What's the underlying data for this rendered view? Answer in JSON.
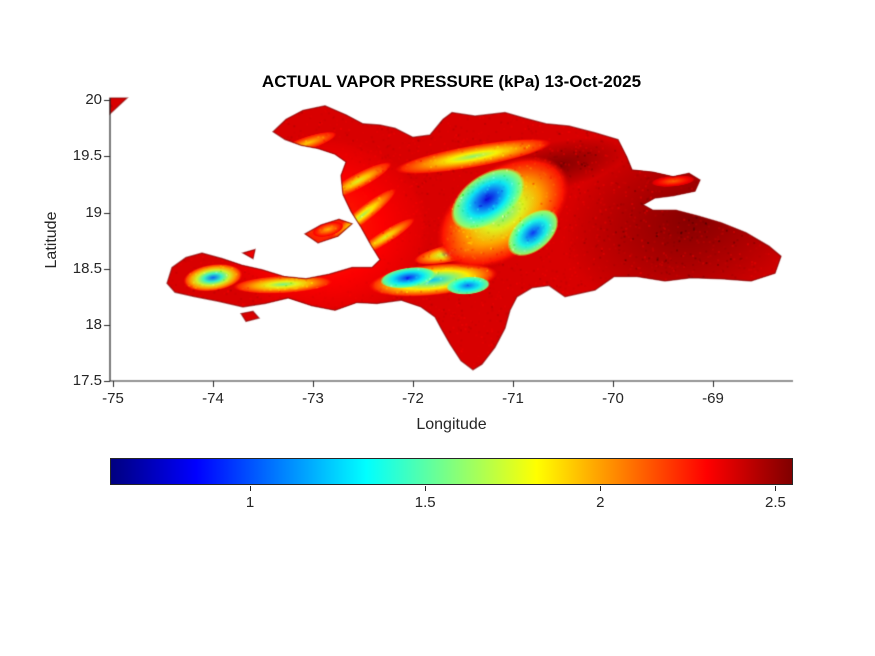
{
  "chart_data": {
    "type": "heatmap",
    "title": "ACTUAL VAPOR PRESSURE (kPa) 13-Oct-2025",
    "variable": "ACTUAL VAPOR PRESSURE",
    "unit": "kPa",
    "date": "13-Oct-2025",
    "xlabel": "Longitude",
    "ylabel": "Latitude",
    "colormap": "jet",
    "grid": false,
    "xlim": [
      -75.03,
      -68.2
    ],
    "ylim": [
      17.5,
      20.02
    ],
    "x_ticks": [
      "-75",
      "-74",
      "-73",
      "-72",
      "-71",
      "-70",
      "-69"
    ],
    "y_ticks": [
      "17.5",
      "18",
      "18.5",
      "19",
      "19.5",
      "20"
    ],
    "colorbar": {
      "orientation": "horizontal",
      "position": "bottom",
      "ticks": [
        "1",
        "1.5",
        "2",
        "2.5"
      ],
      "cmin": 0.6,
      "cmax": 2.55
    },
    "value_range_kpa": [
      0.8,
      2.55
    ],
    "axis_color": "#262626",
    "background_color": "#ffffff",
    "samples": [
      {
        "lon": -69.0,
        "lat": 18.8,
        "kpa": 2.5
      },
      {
        "lon": -70.5,
        "lat": 19.4,
        "kpa": 2.5
      },
      {
        "lon": -68.6,
        "lat": 18.6,
        "kpa": 2.55
      },
      {
        "lon": -72.3,
        "lat": 18.55,
        "kpa": 2.35
      },
      {
        "lon": -73.5,
        "lat": 18.3,
        "kpa": 2.2
      },
      {
        "lon": -72.5,
        "lat": 19.0,
        "kpa": 1.7
      },
      {
        "lon": -71.6,
        "lat": 19.45,
        "kpa": 1.6
      },
      {
        "lon": -74.0,
        "lat": 18.42,
        "kpa": 1.1
      },
      {
        "lon": -72.0,
        "lat": 18.42,
        "kpa": 0.9
      },
      {
        "lon": -71.25,
        "lat": 19.1,
        "kpa": 0.8
      },
      {
        "lon": -70.8,
        "lat": 18.8,
        "kpa": 0.95
      },
      {
        "lon": -69.4,
        "lat": 19.25,
        "kpa": 2.1
      }
    ],
    "region_outlines": {
      "hispaniola": [
        [
          -73.4,
          19.72
        ],
        [
          -73.27,
          19.83
        ],
        [
          -73.1,
          19.91
        ],
        [
          -72.88,
          19.95
        ],
        [
          -72.67,
          19.87
        ],
        [
          -72.5,
          19.79
        ],
        [
          -72.33,
          19.78
        ],
        [
          -72.18,
          19.75
        ],
        [
          -72.0,
          19.67
        ],
        [
          -71.83,
          19.69
        ],
        [
          -71.7,
          19.83
        ],
        [
          -71.61,
          19.89
        ],
        [
          -71.38,
          19.86
        ],
        [
          -71.08,
          19.89
        ],
        [
          -70.88,
          19.84
        ],
        [
          -70.67,
          19.79
        ],
        [
          -70.44,
          19.77
        ],
        [
          -70.18,
          19.71
        ],
        [
          -69.95,
          19.65
        ],
        [
          -69.86,
          19.49
        ],
        [
          -69.81,
          19.38
        ],
        [
          -69.6,
          19.36
        ],
        [
          -69.4,
          19.32
        ],
        [
          -69.24,
          19.35
        ],
        [
          -69.13,
          19.29
        ],
        [
          -69.18,
          19.19
        ],
        [
          -69.4,
          19.15
        ],
        [
          -69.58,
          19.13
        ],
        [
          -69.7,
          19.07
        ],
        [
          -69.6,
          19.02
        ],
        [
          -69.37,
          19.02
        ],
        [
          -69.15,
          18.97
        ],
        [
          -68.92,
          18.91
        ],
        [
          -68.67,
          18.82
        ],
        [
          -68.44,
          18.7
        ],
        [
          -68.32,
          18.61
        ],
        [
          -68.38,
          18.46
        ],
        [
          -68.62,
          18.39
        ],
        [
          -68.92,
          18.41
        ],
        [
          -69.22,
          18.42
        ],
        [
          -69.48,
          18.39
        ],
        [
          -69.76,
          18.43
        ],
        [
          -69.99,
          18.43
        ],
        [
          -70.18,
          18.31
        ],
        [
          -70.48,
          18.25
        ],
        [
          -70.64,
          18.35
        ],
        [
          -70.81,
          18.33
        ],
        [
          -70.96,
          18.25
        ],
        [
          -71.03,
          18.13
        ],
        [
          -71.08,
          17.97
        ],
        [
          -71.18,
          17.8
        ],
        [
          -71.31,
          17.65
        ],
        [
          -71.4,
          17.6
        ],
        [
          -71.52,
          17.68
        ],
        [
          -71.63,
          17.83
        ],
        [
          -71.72,
          17.97
        ],
        [
          -71.78,
          18.07
        ],
        [
          -71.92,
          18.16
        ],
        [
          -72.12,
          18.22
        ],
        [
          -72.36,
          18.19
        ],
        [
          -72.56,
          18.2
        ],
        [
          -72.78,
          18.13
        ],
        [
          -73.01,
          18.17
        ],
        [
          -73.25,
          18.24
        ],
        [
          -73.48,
          18.19
        ],
        [
          -73.7,
          18.16
        ],
        [
          -73.95,
          18.21
        ],
        [
          -74.18,
          18.25
        ],
        [
          -74.38,
          18.29
        ],
        [
          -74.46,
          18.37
        ],
        [
          -74.41,
          18.51
        ],
        [
          -74.27,
          18.6
        ],
        [
          -74.11,
          18.64
        ],
        [
          -73.91,
          18.59
        ],
        [
          -73.71,
          18.53
        ],
        [
          -73.51,
          18.49
        ],
        [
          -73.29,
          18.43
        ],
        [
          -73.07,
          18.41
        ],
        [
          -72.84,
          18.45
        ],
        [
          -72.61,
          18.51
        ],
        [
          -72.41,
          18.51
        ],
        [
          -72.33,
          18.58
        ],
        [
          -72.42,
          18.71
        ],
        [
          -72.52,
          18.87
        ],
        [
          -72.62,
          19.01
        ],
        [
          -72.7,
          19.16
        ],
        [
          -72.72,
          19.33
        ],
        [
          -72.67,
          19.45
        ],
        [
          -72.78,
          19.52
        ],
        [
          -72.95,
          19.57
        ],
        [
          -73.12,
          19.6
        ],
        [
          -73.28,
          19.65
        ]
      ],
      "gonave": [
        [
          -73.08,
          18.81
        ],
        [
          -72.92,
          18.89
        ],
        [
          -72.74,
          18.94
        ],
        [
          -72.61,
          18.9
        ],
        [
          -72.75,
          18.79
        ],
        [
          -72.95,
          18.73
        ]
      ],
      "cuba_edge": [
        [
          -75.03,
          20.02
        ],
        [
          -74.86,
          20.02
        ],
        [
          -75.03,
          19.88
        ]
      ],
      "ile_a_vache": [
        [
          -73.72,
          18.1
        ],
        [
          -73.6,
          18.12
        ],
        [
          -73.54,
          18.06
        ],
        [
          -73.67,
          18.03
        ]
      ],
      "cayemites": [
        [
          -73.7,
          18.64
        ],
        [
          -73.58,
          18.67
        ],
        [
          -73.6,
          18.59
        ]
      ]
    },
    "base_value_kpa": 2.38,
    "features": [
      {
        "name": "east-lowlands-max",
        "cx": -69.2,
        "cy": 18.95,
        "rx": 1.35,
        "ry": 0.85,
        "angle": -15,
        "core": 2.55,
        "edge": 2.38
      },
      {
        "name": "cibao-valley-max",
        "cx": -70.55,
        "cy": 19.42,
        "rx": 0.75,
        "ry": 0.22,
        "angle": -12,
        "core": 2.55,
        "edge": 2.38
      },
      {
        "name": "west-coastal-wash",
        "cx": -72.9,
        "cy": 18.85,
        "rx": 1.1,
        "ry": 0.85,
        "angle": 0,
        "core": 2.22,
        "edge": 2.38
      },
      {
        "name": "enriquillo-valley",
        "cx": -71.6,
        "cy": 18.5,
        "rx": 0.55,
        "ry": 0.09,
        "angle": -8,
        "core": 2.45,
        "edge": 2.38
      },
      {
        "name": "north-cordillera-ridge",
        "cx": -71.4,
        "cy": 19.5,
        "rx": 0.8,
        "ry": 0.1,
        "angle": -10,
        "core": 1.6,
        "edge": 2.3
      },
      {
        "name": "nord-massif-ridge",
        "cx": -72.55,
        "cy": 19.28,
        "rx": 0.38,
        "ry": 0.07,
        "angle": -28,
        "core": 1.75,
        "edge": 2.3
      },
      {
        "name": "matheux-ridge",
        "cx": -72.5,
        "cy": 18.98,
        "rx": 0.42,
        "ry": 0.07,
        "angle": -38,
        "core": 1.65,
        "edge": 2.3
      },
      {
        "name": "noires-ridge",
        "cx": -72.28,
        "cy": 18.78,
        "rx": 0.35,
        "ry": 0.06,
        "angle": -32,
        "core": 1.75,
        "edge": 2.3
      },
      {
        "name": "nw-peninsula-ridge",
        "cx": -73.05,
        "cy": 19.62,
        "rx": 0.3,
        "ry": 0.06,
        "angle": -18,
        "core": 1.9,
        "edge": 2.3
      },
      {
        "name": "neiba-ridge",
        "cx": -71.62,
        "cy": 18.64,
        "rx": 0.38,
        "ry": 0.08,
        "angle": -12,
        "core": 1.5,
        "edge": 2.3
      },
      {
        "name": "tiburon-ridge",
        "cx": -73.3,
        "cy": 18.36,
        "rx": 0.5,
        "ry": 0.08,
        "angle": -3,
        "core": 1.55,
        "edge": 2.3
      },
      {
        "name": "hotte-core",
        "cx": -74.0,
        "cy": 18.42,
        "rx": 0.3,
        "ry": 0.12,
        "angle": -8,
        "core": 1.05,
        "edge": 2.3
      },
      {
        "name": "selle-bahoruco-band",
        "cx": -71.8,
        "cy": 18.4,
        "rx": 0.65,
        "ry": 0.14,
        "angle": -6,
        "core": 1.25,
        "edge": 2.3
      },
      {
        "name": "selle-core",
        "cx": -72.05,
        "cy": 18.42,
        "rx": 0.28,
        "ry": 0.09,
        "angle": -8,
        "core": 0.9,
        "edge": 1.6
      },
      {
        "name": "bahoruco-core",
        "cx": -71.45,
        "cy": 18.35,
        "rx": 0.22,
        "ry": 0.08,
        "angle": -5,
        "core": 1.05,
        "edge": 1.6
      },
      {
        "name": "central-cordillera-halo",
        "cx": -71.1,
        "cy": 19.0,
        "rx": 0.75,
        "ry": 0.4,
        "angle": -35,
        "core": 1.5,
        "edge": 2.35
      },
      {
        "name": "central-cordillera-nw-core",
        "cx": -71.25,
        "cy": 19.12,
        "rx": 0.42,
        "ry": 0.22,
        "angle": -35,
        "core": 0.8,
        "edge": 1.7
      },
      {
        "name": "central-cordillera-se-core",
        "cx": -70.8,
        "cy": 18.82,
        "rx": 0.3,
        "ry": 0.16,
        "angle": -40,
        "core": 0.95,
        "edge": 1.7
      },
      {
        "name": "gonave-center",
        "cx": -72.85,
        "cy": 18.85,
        "rx": 0.16,
        "ry": 0.06,
        "angle": -15,
        "core": 1.95,
        "edge": 2.35
      },
      {
        "name": "samana-ridge",
        "cx": -69.4,
        "cy": 19.28,
        "rx": 0.22,
        "ry": 0.05,
        "angle": -5,
        "core": 2.1,
        "edge": 2.4
      }
    ]
  }
}
